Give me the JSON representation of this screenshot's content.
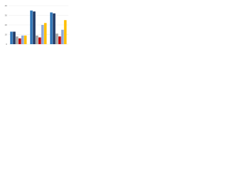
{
  "chart_data": {
    "type": "bar",
    "categories": [
      null,
      null,
      null
    ],
    "series": [
      {
        "color": "#2e75b6",
        "values": [
          13,
          35,
          33
        ]
      },
      {
        "color": "#1f3864",
        "values": [
          13,
          34,
          32
        ]
      },
      {
        "color": "#a5a5a5",
        "values": [
          8,
          9,
          11
        ]
      },
      {
        "color": "#c00000",
        "values": [
          6,
          7,
          8
        ]
      },
      {
        "color": "#8faadc",
        "values": [
          9,
          20,
          15
        ]
      },
      {
        "color": "#ffc000",
        "values": [
          9,
          22,
          25
        ]
      }
    ],
    "ylim": [
      0,
      40
    ],
    "yticks": [
      0,
      10,
      20,
      30,
      40
    ],
    "grid": true
  }
}
